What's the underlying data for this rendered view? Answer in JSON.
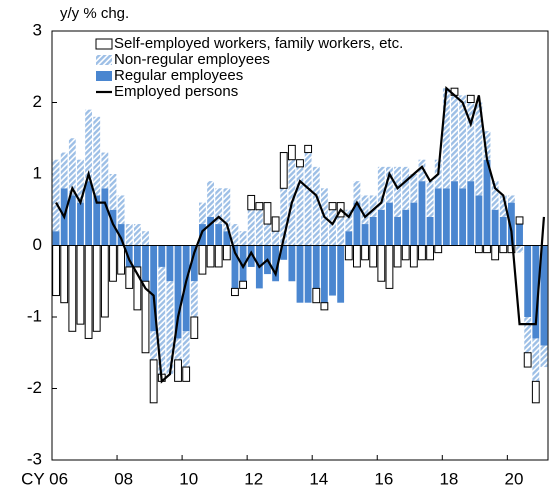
{
  "chart_data": {
    "type": "bar",
    "stacked": true,
    "y_label": "y/y % chg.",
    "categories": [
      "CY 06",
      null,
      null,
      null,
      null,
      null,
      null,
      null,
      "08",
      null,
      null,
      null,
      null,
      null,
      null,
      null,
      "10",
      null,
      null,
      null,
      null,
      null,
      null,
      null,
      "12",
      null,
      null,
      null,
      null,
      null,
      null,
      null,
      "14",
      null,
      null,
      null,
      null,
      null,
      null,
      null,
      "16",
      null,
      null,
      null,
      null,
      null,
      null,
      null,
      "18",
      null,
      null,
      null,
      null,
      null,
      null,
      null,
      "20",
      null,
      null,
      null,
      null
    ],
    "series": [
      {
        "name": "Self-employed workers, family workers, etc.",
        "color": "#ffffff",
        "values": [
          -0.7,
          -0.8,
          -1.2,
          -1.1,
          -1.3,
          -1.2,
          -1.0,
          -0.5,
          -0.4,
          -0.3,
          -0.6,
          -1.0,
          -0.6,
          -0.1,
          0.0,
          -0.3,
          -0.2,
          -0.3,
          -0.4,
          -0.3,
          -0.3,
          -0.2,
          -0.1,
          -0.1,
          0.2,
          0.1,
          0.3,
          0.2,
          0.5,
          0.2,
          0.1,
          0.1,
          -0.2,
          -0.1,
          0.1,
          0.2,
          -0.2,
          -0.3,
          -0.2,
          -0.3,
          -0.5,
          -0.6,
          -0.3,
          -0.2,
          -0.3,
          -0.2,
          -0.2,
          -0.1,
          0.0,
          0.1,
          0.0,
          0.1,
          -0.1,
          -0.1,
          -0.2,
          -0.1,
          -0.1,
          0.1,
          -0.2,
          -0.3,
          0.0
        ]
      },
      {
        "name": "Non-regular employees",
        "color": "#9dbfe6",
        "hatch": true,
        "values": [
          1.0,
          0.5,
          0.8,
          0.6,
          1.0,
          1.1,
          0.5,
          0.5,
          0.4,
          0.3,
          0.3,
          0.2,
          -0.4,
          -1.5,
          -1.3,
          -0.3,
          -0.5,
          -0.5,
          0.3,
          0.5,
          0.5,
          0.6,
          0.3,
          0.2,
          0.5,
          0.5,
          0.3,
          0.2,
          0.8,
          1.2,
          1.1,
          1.3,
          1.1,
          0.8,
          0.5,
          0.4,
          0.3,
          0.3,
          0.4,
          0.3,
          0.6,
          0.5,
          0.7,
          0.6,
          0.4,
          0.3,
          0.5,
          0.4,
          1.4,
          1.2,
          1.3,
          1.1,
          1.3,
          0.4,
          0.4,
          0.3,
          0.1,
          -0.1,
          -0.5,
          -0.6,
          -0.3
        ]
      },
      {
        "name": "Regular employees",
        "color": "#4a86d0",
        "values": [
          0.2,
          0.8,
          0.7,
          0.6,
          0.9,
          0.7,
          0.8,
          0.5,
          0.3,
          -0.3,
          -0.3,
          -0.5,
          -1.2,
          -0.3,
          -0.5,
          -1.3,
          -1.2,
          -0.5,
          0.3,
          0.4,
          0.3,
          0.2,
          -0.6,
          -0.5,
          -0.3,
          -0.6,
          -0.4,
          -0.5,
          -0.2,
          -0.5,
          -0.8,
          -0.8,
          -0.6,
          -0.8,
          -0.7,
          -0.8,
          0.2,
          0.6,
          0.3,
          0.4,
          0.5,
          0.6,
          0.4,
          0.5,
          0.6,
          0.9,
          0.4,
          0.8,
          0.8,
          0.9,
          0.8,
          0.9,
          0.7,
          1.2,
          0.5,
          0.4,
          0.6,
          0.3,
          -1.0,
          -1.3,
          -1.4
        ]
      },
      {
        "name": "Employed persons",
        "color": "#000000",
        "type": "line",
        "values": [
          0.6,
          0.4,
          0.8,
          0.6,
          1.0,
          0.6,
          0.6,
          0.3,
          0.1,
          -0.2,
          -0.4,
          -0.6,
          -0.7,
          -1.9,
          -1.8,
          -1.0,
          -0.5,
          -0.1,
          0.2,
          0.3,
          0.4,
          0.3,
          -0.1,
          -0.3,
          -0.1,
          -0.3,
          -0.2,
          -0.4,
          0.1,
          0.6,
          0.9,
          0.8,
          0.7,
          0.4,
          0.3,
          0.5,
          0.4,
          0.6,
          0.4,
          0.5,
          0.6,
          1.0,
          0.8,
          0.9,
          1.0,
          1.1,
          0.9,
          1.0,
          2.2,
          2.1,
          2.0,
          1.7,
          2.1,
          1.2,
          0.8,
          0.7,
          0.2,
          -1.1,
          -1.1,
          -1.1,
          0.4
        ]
      }
    ],
    "ylim": [
      -3,
      3
    ],
    "yticks": [
      -3,
      -2,
      -1,
      0,
      1,
      2,
      3
    ]
  }
}
